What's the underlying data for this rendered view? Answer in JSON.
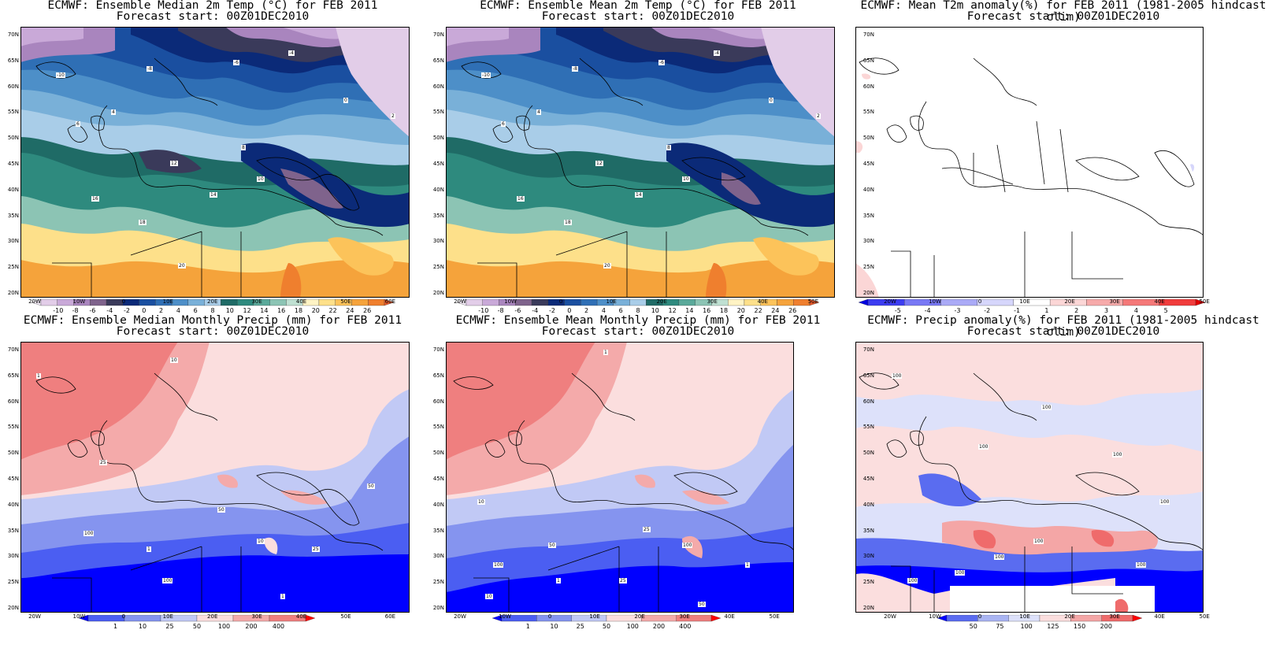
{
  "panels": [
    {
      "title": "ECMWF: Ensemble Median 2m Temp (°C) for FEB 2011",
      "subtitle": "Forecast start: 00Z01DEC2010",
      "x_ticks": [
        "20W",
        "10W",
        "0",
        "10E",
        "20E",
        "30E",
        "40E",
        "50E",
        "60E"
      ],
      "y_ticks": [
        "70N",
        "65N",
        "60N",
        "55N",
        "50N",
        "45N",
        "40N",
        "35N",
        "30N",
        "25N",
        "20N"
      ],
      "colorbar_labels": [
        "-10",
        "-8",
        "-6",
        "-4",
        "-2",
        "0",
        "2",
        "4",
        "6",
        "8",
        "10",
        "12",
        "14",
        "16",
        "18",
        "20",
        "22",
        "24",
        "26"
      ],
      "colorbar_colors": [
        "#f4ecf8",
        "#e2cde8",
        "#c9a9d8",
        "#a985be",
        "#7f638c",
        "#3a3a5a",
        "#0b2a78",
        "#1a4fa0",
        "#2f6fb5",
        "#4d8fc8",
        "#79b0d8",
        "#a9cde8",
        "#1f6b66",
        "#2e8a7e",
        "#5aa99a",
        "#8cc4b4",
        "#bfe0d2",
        "#fff3c4",
        "#fde08a",
        "#fcc35a",
        "#f5a33b",
        "#ef7f2e",
        "#e85a2a"
      ],
      "map_labels": [
        "-10",
        "-8",
        "-6",
        "-4",
        "0",
        "2",
        "4",
        "6",
        "8",
        "10",
        "12",
        "14",
        "16",
        "18",
        "20"
      ]
    },
    {
      "title": "ECMWF: Ensemble Mean 2m Temp (°C) for FEB 2011",
      "subtitle": "Forecast start: 00Z01DEC2010",
      "x_ticks": [
        "20W",
        "10W",
        "0",
        "10E",
        "20E",
        "30E",
        "40E",
        "50E"
      ],
      "y_ticks": [
        "70N",
        "65N",
        "60N",
        "55N",
        "50N",
        "45N",
        "40N",
        "35N",
        "30N",
        "25N",
        "20N"
      ],
      "colorbar_labels": [
        "-10",
        "-8",
        "-6",
        "-4",
        "-2",
        "0",
        "2",
        "4",
        "6",
        "8",
        "10",
        "12",
        "14",
        "16",
        "18",
        "20",
        "22",
        "24",
        "26"
      ],
      "map_labels": [
        "-10",
        "-8",
        "-6",
        "-4",
        "0",
        "2",
        "4",
        "6",
        "8",
        "10",
        "12",
        "14",
        "16",
        "18",
        "20"
      ]
    },
    {
      "title": "ECMWF: Mean T2m anomaly(%) for FEB 2011 (1981-2005 hindcast clim)",
      "subtitle": "Forecast start: 00Z01DEC2010",
      "x_ticks": [
        "20W",
        "10W",
        "0",
        "10E",
        "20E",
        "30E",
        "40E",
        "50E"
      ],
      "y_ticks": [
        "70N",
        "65N",
        "60N",
        "55N",
        "50N",
        "45N",
        "40N",
        "35N",
        "30N",
        "25N",
        "20N"
      ],
      "colorbar_labels": [
        "-5",
        "-4",
        "-3",
        "-2",
        "-1",
        "1",
        "2",
        "3",
        "4",
        "5"
      ],
      "colorbar_colors": [
        "#0000e0",
        "#3c3cf0",
        "#7878f4",
        "#aaaaf6",
        "#d6d6fb",
        "#ffffff",
        "#fbd6d6",
        "#f6aaaa",
        "#f47878",
        "#f03c3c",
        "#e00000"
      ]
    },
    {
      "title": "ECMWF: Ensemble Median Monthly Precip (mm) for FEB 2011",
      "subtitle": "Forecast start: 00Z01DEC2010",
      "x_ticks": [
        "20W",
        "10W",
        "0",
        "10E",
        "20E",
        "30E",
        "40E",
        "50E",
        "60E"
      ],
      "y_ticks": [
        "70N",
        "65N",
        "60N",
        "55N",
        "50N",
        "45N",
        "40N",
        "35N",
        "30N",
        "25N",
        "20N"
      ],
      "colorbar_labels": [
        "1",
        "10",
        "25",
        "50",
        "100",
        "200",
        "400"
      ],
      "colorbar_colors": [
        "#0000ff",
        "#4b5ef2",
        "#8594ef",
        "#c1c9f5",
        "#fbdede",
        "#f4aaaa",
        "#ef7f7f",
        "#ff0000"
      ],
      "map_labels": [
        "1",
        "10",
        "25",
        "50",
        "100"
      ]
    },
    {
      "title": "ECMWF: Ensemble Mean Monthly Precip (mm) for FEB 2011",
      "subtitle": "Forecast start: 00Z01DEC2010",
      "x_ticks": [
        "20W",
        "10W",
        "0",
        "10E",
        "20E",
        "30E",
        "40E",
        "50E"
      ],
      "y_ticks": [
        "70N",
        "65N",
        "60N",
        "55N",
        "50N",
        "45N",
        "40N",
        "35N",
        "30N",
        "25N",
        "20N"
      ],
      "colorbar_labels": [
        "1",
        "10",
        "25",
        "50",
        "100",
        "200",
        "400"
      ],
      "map_labels": [
        "1",
        "10",
        "25",
        "50",
        "100"
      ]
    },
    {
      "title": "ECMWF: Precip anomaly(%) for FEB 2011 (1981-2005 hindcast clim)",
      "subtitle": "Forecast start: 00Z01DEC2010",
      "x_ticks": [
        "20W",
        "10W",
        "0",
        "10E",
        "20E",
        "30E",
        "40E",
        "50E"
      ],
      "y_ticks": [
        "70N",
        "65N",
        "60N",
        "55N",
        "50N",
        "45N",
        "40N",
        "35N",
        "30N",
        "25N",
        "20N"
      ],
      "colorbar_labels": [
        "50",
        "75",
        "100",
        "125",
        "150",
        "200"
      ],
      "colorbar_colors": [
        "#0000ff",
        "#5a6cf0",
        "#a9b4f2",
        "#dde1fa",
        "#fbdede",
        "#f4a6a6",
        "#ef6b6b",
        "#ff0000"
      ],
      "map_labels": [
        "100"
      ]
    }
  ]
}
